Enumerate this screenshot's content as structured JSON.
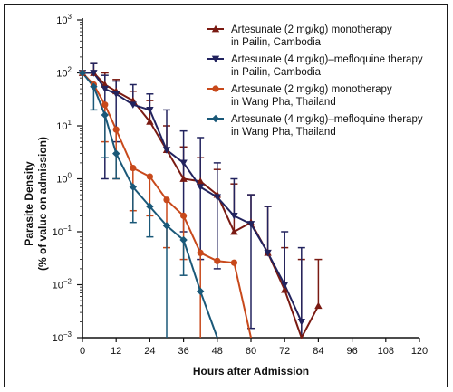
{
  "chart_data": {
    "type": "line",
    "xlabel": "Hours after Admission",
    "ylabel": "Parasite Density",
    "ylabel_sub": "(% of value on admission)",
    "ylim": [
      0.001,
      1000
    ],
    "xlim": [
      0,
      120
    ],
    "yscale": "log",
    "x_ticks": [
      0,
      12,
      24,
      36,
      48,
      60,
      72,
      84,
      96,
      108,
      120
    ],
    "x_tick_labels": [
      "0",
      "12",
      "24",
      "36",
      "48",
      "60",
      "72",
      "84",
      "96",
      "108",
      "120"
    ],
    "y_ticks": [
      {
        "value": 1000,
        "base": "10",
        "exp": "3"
      },
      {
        "value": 100,
        "base": "10",
        "exp": "2"
      },
      {
        "value": 10,
        "base": "10",
        "exp": "1"
      },
      {
        "value": 1,
        "base": "10",
        "exp": "0"
      },
      {
        "value": 0.1,
        "base": "10",
        "exp": "−1"
      },
      {
        "value": 0.01,
        "base": "10",
        "exp": "−2"
      },
      {
        "value": 0.001,
        "base": "10",
        "exp": "−3"
      }
    ],
    "legend_position": "top-right",
    "series": [
      {
        "name": "Artesunate (2 mg/kg) monotherapy",
        "name_line2": "in Pailin, Cambodia",
        "color": "#7a1a12",
        "marker": "triangle-up",
        "x": [
          0,
          4,
          8,
          12,
          18,
          24,
          30,
          36,
          42,
          48,
          54,
          60,
          66,
          72,
          78,
          84
        ],
        "y": [
          100,
          100,
          60,
          45,
          30,
          12,
          3.5,
          1.0,
          0.9,
          0.5,
          0.1,
          0.15,
          0.04,
          0.008,
          0.0009,
          0.004
        ],
        "upper": [
          null,
          150,
          100,
          75,
          45,
          30,
          10,
          4,
          2.5,
          1.5,
          0.8,
          0.5,
          0.3,
          0.05,
          0.03,
          0.03
        ]
      },
      {
        "name": "Artesunate (4 mg/kg)–mefloquine therapy",
        "name_line2": "in Pailin, Cambodia",
        "color": "#22235e",
        "marker": "triangle-down",
        "x": [
          0,
          4,
          8,
          12,
          18,
          24,
          30,
          36,
          42,
          48,
          54,
          60,
          66,
          72,
          78,
          84
        ],
        "y": [
          100,
          100,
          50,
          40,
          25,
          20,
          3.5,
          2.0,
          0.7,
          0.45,
          0.2,
          0.14,
          0.04,
          0.01,
          0.002,
          null
        ],
        "upper": [
          null,
          150,
          90,
          70,
          60,
          40,
          20,
          8,
          6,
          2,
          1.0,
          0.5,
          0.3,
          0.1,
          0.05,
          null
        ],
        "lower": [
          null,
          null,
          1.0,
          5,
          null,
          null,
          null,
          0.1,
          0.03,
          0.02,
          null,
          0.0015,
          null,
          null,
          0.0009,
          null
        ]
      },
      {
        "name": "Artesunate (2 mg/kg) monotherapy",
        "name_line2": "in Wang Pha, Thailand",
        "color": "#c8491b",
        "marker": "circle",
        "x": [
          0,
          4,
          8,
          12,
          18,
          24,
          30,
          36,
          42,
          48,
          54,
          60
        ],
        "y": [
          100,
          60,
          25,
          8.5,
          1.6,
          1.1,
          0.4,
          0.2,
          0.04,
          0.028,
          0.026,
          0.001
        ],
        "lower": [
          null,
          null,
          5,
          1,
          0.25,
          0.2,
          0.05,
          0.03,
          0.001,
          null,
          null,
          null
        ]
      },
      {
        "name": "Artesunate (4 mg/kg)–mefloquine therapy",
        "name_line2": "in Wang Pha, Thailand",
        "color": "#1a5878",
        "marker": "diamond",
        "x": [
          0,
          4,
          8,
          12,
          18,
          24,
          30,
          36,
          42,
          48
        ],
        "y": [
          100,
          55,
          16,
          3.0,
          0.7,
          0.3,
          0.13,
          0.07,
          0.0075,
          0.001
        ],
        "lower": [
          null,
          20,
          2.5,
          1.0,
          0.15,
          0.08,
          0.001,
          0.015,
          null,
          null
        ]
      }
    ]
  }
}
